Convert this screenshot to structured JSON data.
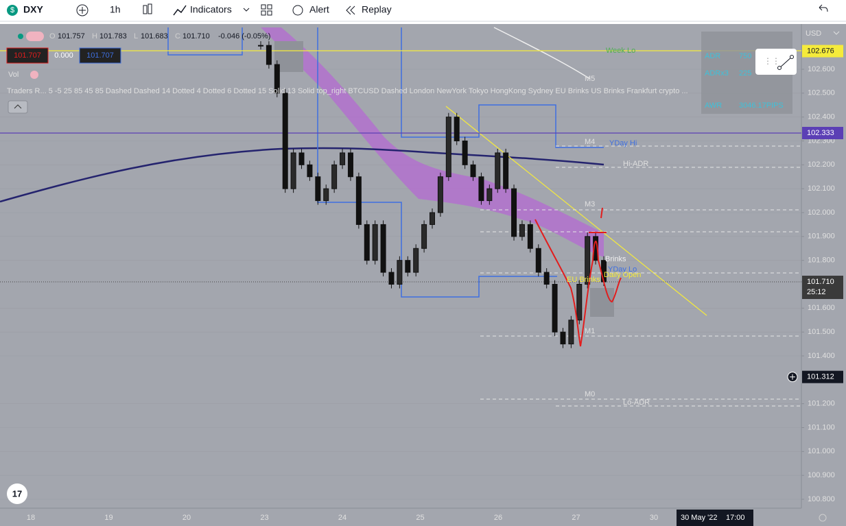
{
  "toolbar": {
    "symbol": "DXY",
    "interval": "1h",
    "indicators": "Indicators",
    "alert": "Alert",
    "replay": "Replay"
  },
  "legend": {
    "open_label": "O",
    "open": "101.757",
    "high_label": "H",
    "high": "101.783",
    "low_label": "L",
    "low": "101.683",
    "close_label": "C",
    "close": "101.710",
    "change": "-0.046 (-0.05%)",
    "bid": "101.707",
    "spread": "0.000",
    "ask": "101.707",
    "volume": "Vol",
    "indicator": "Traders R...  5 -5 25 85 45 85 Dashed Dashed 14 Dotted 4 Dotted 6 Dotted 15 Solid 13 Solid top_right BTCUSD Dashed London NewYork Tokyo HongKong Sydney EU Brinks US Brinks Frankfurt crypto ..."
  },
  "price_axis": {
    "currency": "USD",
    "ticks": [
      {
        "value": 102.6,
        "label": "102.600"
      },
      {
        "value": 102.5,
        "label": "102.500"
      },
      {
        "value": 102.4,
        "label": "102.400"
      },
      {
        "value": 102.3,
        "label": "102.300"
      },
      {
        "value": 102.2,
        "label": "102.200"
      },
      {
        "value": 102.1,
        "label": "102.100"
      },
      {
        "value": 102.0,
        "label": "102.000"
      },
      {
        "value": 101.9,
        "label": "101.900"
      },
      {
        "value": 101.8,
        "label": "101.800"
      },
      {
        "value": 101.6,
        "label": "101.600"
      },
      {
        "value": 101.5,
        "label": "101.500"
      },
      {
        "value": 101.4,
        "label": "101.400"
      },
      {
        "value": 101.2,
        "label": "101.200"
      },
      {
        "value": 101.1,
        "label": "101.100"
      },
      {
        "value": 101.0,
        "label": "101.000"
      },
      {
        "value": 100.9,
        "label": "100.900"
      },
      {
        "value": 100.8,
        "label": "100.800"
      }
    ],
    "badges": [
      {
        "value": 102.676,
        "label": "102.676",
        "color": "#f5eb3b"
      },
      {
        "value": 102.333,
        "label": "102.333",
        "color": "#5b3fb5"
      },
      {
        "value": 101.71,
        "label": "101.710",
        "color": "#3a3a3a"
      },
      {
        "value": 101.312,
        "label": "101.312",
        "color": "#131722"
      }
    ],
    "countdown": "25:12"
  },
  "time_axis": {
    "labels": [
      "18",
      "19",
      "20",
      "23",
      "24",
      "25",
      "26",
      "27",
      "30"
    ],
    "cursor_date": "30 May '22",
    "cursor_time": "17:00"
  },
  "levels": {
    "m5": "M5",
    "m4": "M4",
    "m3": "M3",
    "m1": "M1",
    "m0": "M0",
    "yday_hi": "YDay Hi",
    "hi_adr": "Hi-ADR",
    "lo_adr": "Lo-ADR",
    "week_lo": "Week Lo",
    "brinks": "Brinks",
    "yday_lo": "YDay Lo",
    "daily_open": "Daily Open",
    "eu_brinks": "EU Brinks"
  },
  "adr_table": {
    "rows": [
      [
        "ADR",
        "750"
      ],
      [
        "ADRx3",
        "225"
      ],
      [
        "AWR",
        "3046.17PIPS"
      ]
    ]
  },
  "candles": {
    "closes": [
      102.7,
      102.62,
      102.5,
      102.1,
      102.25,
      102.2,
      102.15,
      102.05,
      102.1,
      102.2,
      102.25,
      102.15,
      101.95,
      101.8,
      101.95,
      101.75,
      101.7,
      101.8,
      101.75,
      101.85,
      101.95,
      102.0,
      102.15,
      102.4,
      102.3,
      102.2,
      102.15,
      102.05,
      102.1,
      102.25,
      102.1,
      101.9,
      101.95,
      101.85,
      101.75,
      101.7,
      101.5,
      101.45,
      101.55,
      101.7,
      101.9,
      101.8,
      101.71
    ]
  }
}
